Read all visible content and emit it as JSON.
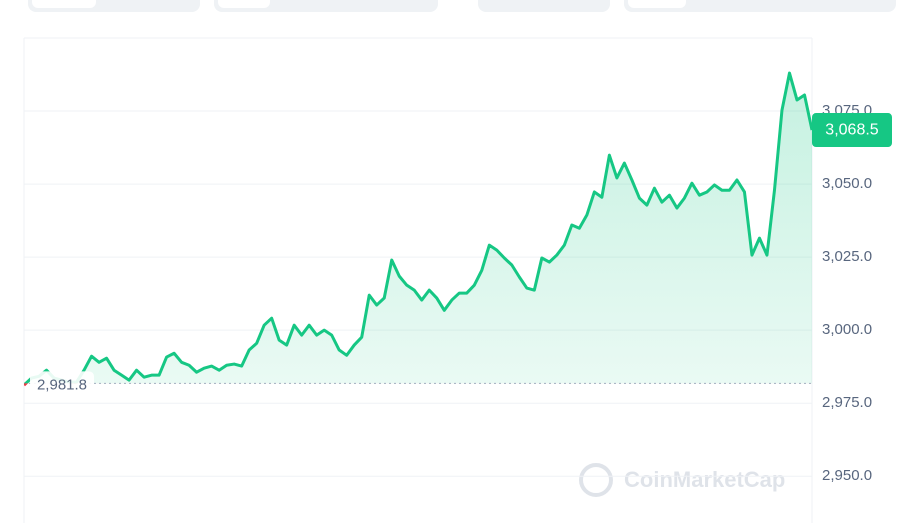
{
  "chart_data": {
    "type": "line",
    "watermark": "CoinMarketCap",
    "series": [
      {
        "color": "#16c784",
        "below_color": "#ea3943",
        "values": [
          2981.2,
          2983.6,
          2984.2,
          2986.3,
          2983.6,
          2982.9,
          2982.2,
          2982.2,
          2986.3,
          2991.1,
          2989.0,
          2990.4,
          2986.3,
          2984.6,
          2982.9,
          2986.3,
          2983.9,
          2984.6,
          2984.6,
          2990.8,
          2992.1,
          2989.0,
          2988.0,
          2985.6,
          2987.0,
          2987.7,
          2986.3,
          2988.0,
          2988.4,
          2987.7,
          2993.2,
          2995.5,
          3001.7,
          3004.1,
          2996.6,
          2994.9,
          3001.7,
          2998.3,
          3001.7,
          2998.3,
          3000.0,
          2998.3,
          2993.2,
          2991.4,
          2994.9,
          2997.6,
          3012.0,
          3008.6,
          3011.0,
          3024.0,
          3018.5,
          3015.4,
          3013.7,
          3010.3,
          3013.7,
          3011.0,
          3006.8,
          3010.3,
          3012.7,
          3012.7,
          3015.4,
          3020.5,
          3029.1,
          3027.4,
          3024.7,
          3022.3,
          3018.2,
          3014.4,
          3013.7,
          3024.7,
          3023.3,
          3025.7,
          3029.1,
          3036.0,
          3034.9,
          3039.4,
          3047.3,
          3045.5,
          3059.9,
          3052.1,
          3057.2,
          3051.4,
          3045.2,
          3042.8,
          3048.6,
          3043.8,
          3046.2,
          3041.8,
          3045.2,
          3050.3,
          3046.2,
          3047.3,
          3049.7,
          3047.9,
          3047.9,
          3051.4,
          3047.3,
          3025.7,
          3031.5,
          3025.7,
          3047.9,
          3075.3,
          3088.0,
          3078.8,
          3080.5,
          3068.5
        ],
        "value_labels": [
          null,
          null,
          null,
          null,
          null,
          null,
          null,
          null,
          null,
          null,
          null,
          null,
          null,
          null,
          null,
          null,
          null,
          null,
          null,
          null,
          null,
          null,
          null,
          null,
          null,
          null,
          null,
          null,
          null,
          null,
          null,
          null,
          null,
          null,
          null,
          null,
          null,
          null,
          null,
          null,
          null,
          null,
          null,
          null,
          null,
          null,
          null,
          null,
          null,
          null,
          null,
          null,
          null,
          null,
          null,
          null,
          null,
          null,
          null,
          null,
          null,
          null,
          null,
          null,
          null,
          null,
          null,
          null,
          null,
          null,
          null,
          null,
          null,
          null,
          null,
          null,
          null,
          null,
          null,
          null,
          null,
          null,
          null,
          null,
          null,
          null,
          null,
          null,
          null,
          null,
          null,
          null,
          null,
          null,
          null,
          null,
          null,
          null,
          null,
          null,
          null,
          null,
          null,
          null,
          null,
          "3,068.5"
        ]
      }
    ],
    "baseline": {
      "value": 2981.8,
      "label": "2,981.8"
    },
    "ylim": [
      2934,
      3100
    ],
    "yticks": [
      {
        "value": 2950,
        "label": "2,950.0"
      },
      {
        "value": 2975,
        "label": "2,975.0"
      },
      {
        "value": 3000,
        "label": "3,000.0"
      },
      {
        "value": 3025,
        "label": "3,025.0"
      },
      {
        "value": 3050,
        "label": "3,050.0"
      },
      {
        "value": 3075,
        "label": "3,075.0"
      }
    ],
    "grid": true
  }
}
